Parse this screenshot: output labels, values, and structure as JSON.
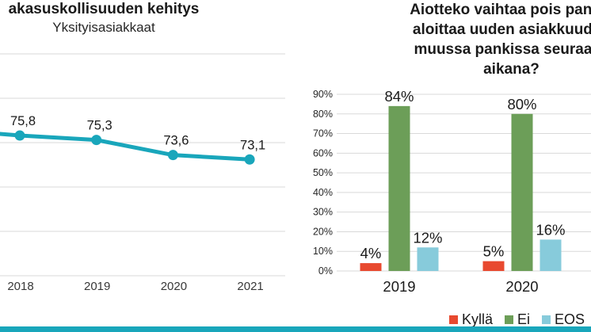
{
  "page": {
    "background": "#ffffff",
    "footer_bar_color": "#19A6BB"
  },
  "chart_data": [
    {
      "id": "customer-loyalty-line",
      "type": "line",
      "title": "akasuskollisuuden kehitys",
      "subtitle": "Yksityisasiakkaat",
      "categories": [
        "2018",
        "2019",
        "2020",
        "2021"
      ],
      "series": [
        {
          "name": "Yksityisasiakkaat",
          "values": [
            75.8,
            75.3,
            73.6,
            73.1
          ]
        }
      ],
      "value_labels": [
        "75,8",
        "75,3",
        "73,6",
        "73,1"
      ],
      "line_color": "#19A6BB",
      "ylim": [
        60,
        85
      ],
      "grid_step": 5,
      "grid": true,
      "legend_position": "none"
    },
    {
      "id": "bank-switch-intent-bars",
      "type": "bar",
      "title_lines": [
        "Aiotteko vaihtaa pois pankis",
        "aloittaa uuden asiakkuuden",
        "muussa pankissa seuraava",
        "aikana?"
      ],
      "categories": [
        "2019",
        "2020"
      ],
      "series": [
        {
          "name": "Kyllä",
          "color": "#E8492F",
          "values": [
            4,
            5
          ],
          "labels": [
            "4%",
            "5%"
          ]
        },
        {
          "name": "Ei",
          "color": "#6C9E58",
          "values": [
            84,
            80
          ],
          "labels": [
            "84%",
            "80%"
          ]
        },
        {
          "name": "EOS",
          "color": "#87CBDB",
          "values": [
            12,
            16
          ],
          "labels": [
            "12%",
            "16%"
          ]
        }
      ],
      "y_ticks": [
        "0%",
        "10%",
        "20%",
        "30%",
        "40%",
        "50%",
        "60%",
        "70%",
        "80%",
        "90%"
      ],
      "ylim": [
        0,
        90
      ],
      "grid": true,
      "legend_position": "bottom-right"
    }
  ]
}
